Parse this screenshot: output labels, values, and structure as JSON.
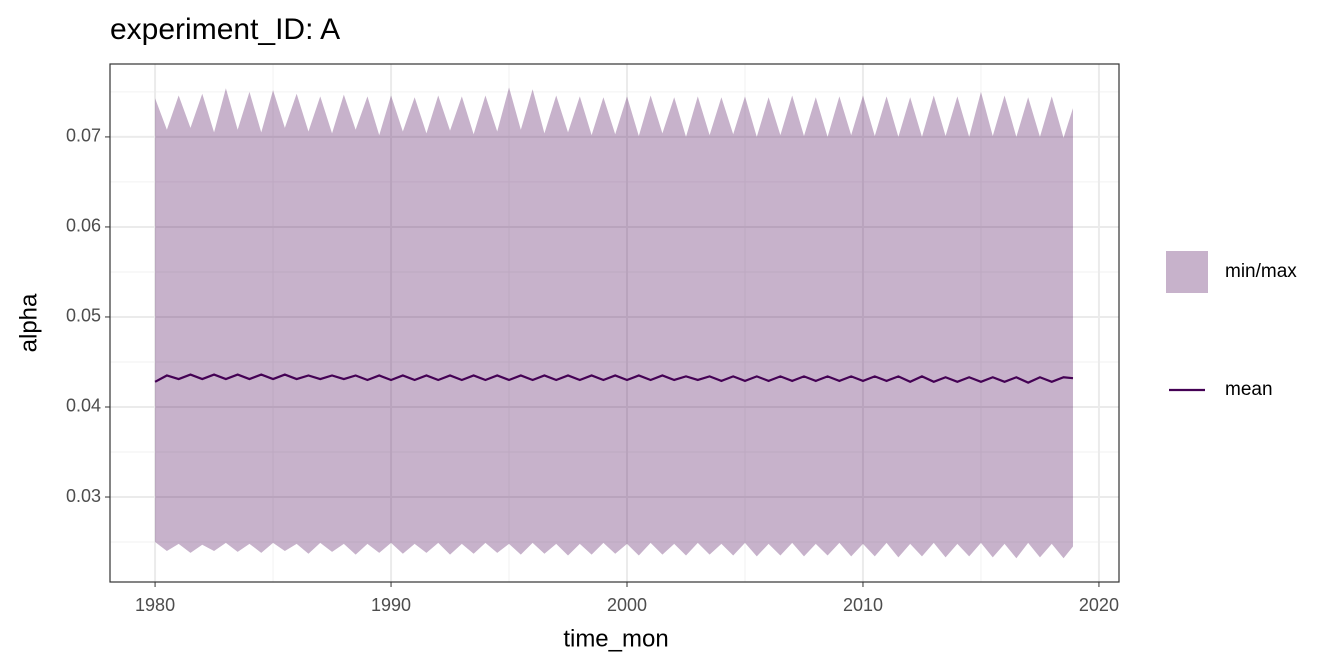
{
  "chart_data": {
    "type": "ribbon-line",
    "title": "experiment_ID: A",
    "x_label": "time_mon",
    "y_label": "alpha",
    "x": [
      1980,
      1980.5,
      1981,
      1981.5,
      1982,
      1982.5,
      1983,
      1983.5,
      1984,
      1984.5,
      1985,
      1985.5,
      1986,
      1986.5,
      1987,
      1987.5,
      1988,
      1988.5,
      1989,
      1989.5,
      1990,
      1990.5,
      1991,
      1991.5,
      1992,
      1992.5,
      1993,
      1993.5,
      1994,
      1994.5,
      1995,
      1995.5,
      1996,
      1996.5,
      1997,
      1997.5,
      1998,
      1998.5,
      1999,
      1999.5,
      2000,
      2000.5,
      2001,
      2001.5,
      2002,
      2002.5,
      2003,
      2003.5,
      2004,
      2004.5,
      2005,
      2005.5,
      2006,
      2006.5,
      2007,
      2007.5,
      2008,
      2008.5,
      2009,
      2009.5,
      2010,
      2010.5,
      2011,
      2011.5,
      2012,
      2012.5,
      2013,
      2013.5,
      2014,
      2014.5,
      2015,
      2015.5,
      2016,
      2016.5,
      2017,
      2017.5,
      2018,
      2018.5,
      2018.9
    ],
    "series": [
      {
        "name": "min/max",
        "color": "#440154",
        "alpha": 0.3,
        "upper": [
          0.0743,
          0.0708,
          0.0746,
          0.071,
          0.0748,
          0.0705,
          0.0754,
          0.0708,
          0.075,
          0.0705,
          0.0752,
          0.071,
          0.0748,
          0.0706,
          0.0745,
          0.0704,
          0.0747,
          0.0708,
          0.0745,
          0.0702,
          0.0746,
          0.0706,
          0.0744,
          0.0704,
          0.0746,
          0.0707,
          0.0745,
          0.0703,
          0.0746,
          0.0706,
          0.0755,
          0.0708,
          0.0753,
          0.0704,
          0.0746,
          0.0705,
          0.0745,
          0.0702,
          0.0744,
          0.0703,
          0.0745,
          0.0701,
          0.0746,
          0.0704,
          0.0744,
          0.07,
          0.0745,
          0.0702,
          0.0744,
          0.0703,
          0.0745,
          0.07,
          0.0744,
          0.0702,
          0.0746,
          0.0701,
          0.0744,
          0.07,
          0.0745,
          0.0702,
          0.0746,
          0.0701,
          0.0745,
          0.07,
          0.0744,
          0.07,
          0.0746,
          0.0701,
          0.0745,
          0.07,
          0.075,
          0.0701,
          0.0746,
          0.07,
          0.0744,
          0.07,
          0.0745,
          0.0699,
          0.0732
        ],
        "lower": [
          0.025,
          0.024,
          0.0248,
          0.0238,
          0.0247,
          0.024,
          0.0249,
          0.0239,
          0.0248,
          0.0238,
          0.0249,
          0.024,
          0.0248,
          0.0237,
          0.0249,
          0.0239,
          0.0248,
          0.0236,
          0.0248,
          0.0238,
          0.0249,
          0.0237,
          0.0248,
          0.0238,
          0.0249,
          0.0236,
          0.0248,
          0.0237,
          0.0249,
          0.0238,
          0.0248,
          0.0236,
          0.0249,
          0.0237,
          0.0248,
          0.0235,
          0.0248,
          0.0236,
          0.0249,
          0.0237,
          0.0248,
          0.0235,
          0.0249,
          0.0236,
          0.0248,
          0.0235,
          0.0249,
          0.0236,
          0.0248,
          0.0235,
          0.0249,
          0.0234,
          0.0248,
          0.0235,
          0.0249,
          0.0234,
          0.0248,
          0.0235,
          0.0249,
          0.0234,
          0.0248,
          0.0234,
          0.0249,
          0.0233,
          0.0248,
          0.0234,
          0.0249,
          0.0233,
          0.0248,
          0.0234,
          0.0249,
          0.0233,
          0.0248,
          0.0232,
          0.0249,
          0.0233,
          0.0248,
          0.0232,
          0.0245
        ]
      },
      {
        "name": "mean",
        "color": "#440154",
        "values": [
          0.0428,
          0.0435,
          0.0431,
          0.0436,
          0.0431,
          0.0436,
          0.0431,
          0.0436,
          0.0431,
          0.0436,
          0.0431,
          0.0436,
          0.0431,
          0.0435,
          0.0431,
          0.0435,
          0.0431,
          0.0435,
          0.043,
          0.0435,
          0.043,
          0.0435,
          0.043,
          0.0435,
          0.043,
          0.0435,
          0.043,
          0.0435,
          0.043,
          0.0435,
          0.043,
          0.0435,
          0.043,
          0.0435,
          0.043,
          0.0435,
          0.043,
          0.0435,
          0.043,
          0.0435,
          0.043,
          0.0435,
          0.043,
          0.0435,
          0.043,
          0.0434,
          0.043,
          0.0434,
          0.0429,
          0.0434,
          0.0429,
          0.0434,
          0.0429,
          0.0434,
          0.0429,
          0.0434,
          0.0429,
          0.0434,
          0.0429,
          0.0434,
          0.0429,
          0.0434,
          0.0429,
          0.0434,
          0.0428,
          0.0434,
          0.0428,
          0.0433,
          0.0428,
          0.0433,
          0.0428,
          0.0433,
          0.0428,
          0.0433,
          0.0427,
          0.0433,
          0.0428,
          0.0433,
          0.0432
        ]
      }
    ],
    "xlim": [
      1978.09,
      2020.85
    ],
    "xticks": [
      1980,
      1990,
      2000,
      2010,
      2020
    ],
    "ylim": [
      0.02056,
      0.0781
    ],
    "yticks": [
      0.03,
      0.04,
      0.05,
      0.06,
      0.07
    ],
    "grid": true,
    "legend": "right"
  }
}
